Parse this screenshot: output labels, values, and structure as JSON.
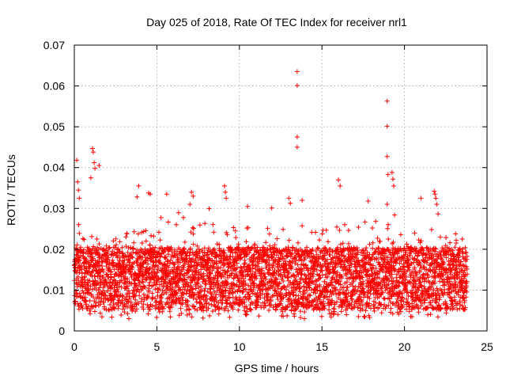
{
  "chart_data": {
    "type": "scatter",
    "title": "Day 025 of 2018, Rate Of TEC Index for receiver nrl1",
    "xlabel": "GPS time / hours",
    "ylabel": "ROTI / TECUs",
    "xlim": [
      0,
      25
    ],
    "ylim": [
      0,
      0.07
    ],
    "x_ticks": [
      0,
      5,
      10,
      15,
      20,
      25
    ],
    "y_ticks": [
      0,
      0.01,
      0.02,
      0.03,
      0.04,
      0.05,
      0.06,
      0.07
    ],
    "x_tick_labels": [
      "0",
      "5",
      "10",
      "15",
      "20",
      "25"
    ],
    "y_tick_labels": [
      "0",
      "0.01",
      "0.02",
      "0.03",
      "0.04",
      "0.05",
      "0.06",
      "0.07"
    ],
    "grid": true,
    "marker": "+",
    "marker_color": "#ff0000",
    "series": [
      {
        "name": "ROTI",
        "points": [
          [
            13.5,
            0.0635
          ],
          [
            13.5,
            0.0601
          ],
          [
            13.5,
            0.0475
          ],
          [
            13.5,
            0.045
          ],
          [
            18.95,
            0.0563
          ],
          [
            18.95,
            0.0501
          ],
          [
            18.95,
            0.0427
          ],
          [
            19.0,
            0.0383
          ],
          [
            19.25,
            0.0388
          ],
          [
            19.3,
            0.0372
          ],
          [
            19.35,
            0.0355
          ],
          [
            0.15,
            0.0418
          ],
          [
            0.2,
            0.0365
          ],
          [
            0.25,
            0.0345
          ],
          [
            0.3,
            0.0325
          ],
          [
            1.1,
            0.0447
          ],
          [
            1.15,
            0.0438
          ],
          [
            1.2,
            0.0412
          ],
          [
            1.25,
            0.0398
          ],
          [
            1.0,
            0.0375
          ],
          [
            1.5,
            0.0405
          ],
          [
            7.1,
            0.034
          ],
          [
            7.2,
            0.033
          ],
          [
            7.0,
            0.031
          ],
          [
            9.1,
            0.0355
          ],
          [
            9.15,
            0.034
          ],
          [
            9.2,
            0.0325
          ],
          [
            4.5,
            0.0338
          ],
          [
            4.6,
            0.0335
          ],
          [
            5.6,
            0.0335
          ],
          [
            3.8,
            0.0328
          ],
          [
            3.9,
            0.0355
          ],
          [
            10.5,
            0.0305
          ],
          [
            13.0,
            0.0325
          ],
          [
            13.8,
            0.032
          ],
          [
            16.0,
            0.037
          ],
          [
            16.1,
            0.0355
          ],
          [
            21.8,
            0.0342
          ],
          [
            21.85,
            0.0335
          ],
          [
            21.9,
            0.0325
          ],
          [
            21.95,
            0.031
          ],
          [
            21.0,
            0.0325
          ],
          [
            17.8,
            0.0318
          ],
          [
            23.5,
            0.0225
          ]
        ]
      }
    ],
    "band": {
      "description": "dense point cloud",
      "x_range": [
        0,
        23.8
      ],
      "base_range": [
        0.005,
        0.0205
      ]
    }
  }
}
